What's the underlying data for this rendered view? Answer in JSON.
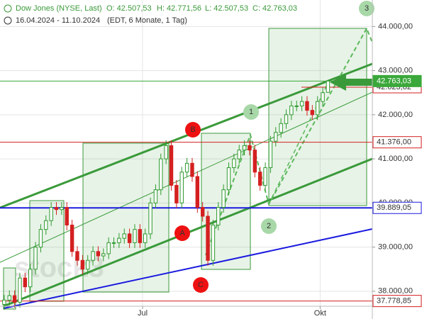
{
  "chart_data": {
    "type": "candlestick",
    "title": "Dow Jones (NYSE, Last)",
    "header_values": [
      "O: 42.507,53",
      "H: 42.771,56",
      "L: 42.507,53",
      "C: 42.763,03"
    ],
    "subtitle": "16.04.2024 - 11.10.2024",
    "subtitle_note": "(EDT, 6 Monate, 1 Tag)",
    "watermark": "stock3",
    "x": [
      0,
      2,
      4,
      6,
      8,
      10,
      12,
      14,
      16,
      18,
      20,
      22,
      24,
      26,
      28,
      30,
      32,
      34,
      36,
      38,
      40,
      42,
      44,
      46,
      48,
      50,
      52,
      54,
      56,
      58,
      60,
      62,
      64,
      66,
      68,
      70,
      72,
      74,
      76,
      78,
      80,
      82,
      84,
      86,
      88,
      90,
      92,
      94,
      96,
      98,
      100,
      102,
      104,
      106,
      108,
      110,
      112,
      114,
      116,
      118,
      120,
      122,
      124
    ],
    "open": [
      37700,
      37800,
      37900,
      37750,
      38300,
      38100,
      38500,
      39000,
      39400,
      39600,
      39900,
      39850,
      39900,
      39500,
      38900,
      38700,
      38500,
      38700,
      38900,
      38800,
      38850,
      39100,
      39100,
      39200,
      39300,
      39100,
      39400,
      39100,
      39300,
      40000,
      40300,
      41000,
      41300,
      40400,
      40000,
      40700,
      40900,
      40600,
      39900,
      39700,
      38700,
      39500,
      39900,
      40300,
      40800,
      41000,
      41200,
      41300,
      41200,
      40700,
      40400,
      40800,
      41400,
      41600,
      41800,
      42000,
      42200,
      42200,
      42300,
      42100,
      42000,
      42300,
      42507.53
    ],
    "high": [
      37920,
      38020,
      38020,
      38420,
      38420,
      38620,
      39120,
      39520,
      39720,
      40020,
      40020,
      40020,
      40020,
      39620,
      39020,
      38820,
      38820,
      39020,
      39020,
      38970,
      39220,
      39220,
      39320,
      39420,
      39420,
      39520,
      39520,
      39420,
      40120,
      40420,
      41120,
      41420,
      41420,
      40520,
      40820,
      41020,
      41020,
      40720,
      40020,
      39820,
      39620,
      40020,
      40420,
      40920,
      41120,
      41320,
      41420,
      41420,
      41320,
      40820,
      40920,
      41520,
      41720,
      41920,
      42120,
      42320,
      42320,
      42420,
      42420,
      42220,
      42420,
      42620,
      42771.56
    ],
    "low": [
      37580,
      37680,
      37630,
      37630,
      37980,
      37980,
      38380,
      38880,
      39280,
      39480,
      39730,
      39730,
      39380,
      38780,
      38580,
      38380,
      38380,
      38580,
      38680,
      38680,
      38730,
      38980,
      38980,
      39080,
      38980,
      38980,
      38980,
      38980,
      39180,
      39880,
      40180,
      40880,
      40280,
      39880,
      39880,
      40580,
      40480,
      39780,
      39580,
      38580,
      38580,
      39380,
      39780,
      40180,
      40680,
      40880,
      41080,
      41080,
      40580,
      40280,
      40280,
      40680,
      41280,
      41480,
      41680,
      41880,
      42080,
      42080,
      41980,
      41880,
      41880,
      42180,
      42507.53
    ],
    "close": [
      37800,
      37900,
      37750,
      38300,
      38100,
      38500,
      39000,
      39400,
      39600,
      39900,
      39850,
      39900,
      39500,
      38900,
      38700,
      38500,
      38700,
      38900,
      38800,
      38850,
      39100,
      39100,
      39200,
      39300,
      39100,
      39400,
      39100,
      39300,
      40000,
      40300,
      41000,
      41300,
      40400,
      40000,
      40700,
      40900,
      40600,
      39900,
      39700,
      38700,
      39500,
      39900,
      40300,
      40800,
      41000,
      41200,
      41300,
      41200,
      40700,
      40400,
      40800,
      41400,
      41600,
      41800,
      42000,
      42200,
      42200,
      42300,
      42100,
      42000,
      42300,
      42500,
      42763.03
    ],
    "up_color": "#2f9a2f",
    "down_color": "#d42020",
    "xlim": [
      -1.6,
      141
    ],
    "xticks": [
      {
        "value": 53,
        "label": "Jul"
      },
      {
        "value": 121,
        "label": "Okt"
      }
    ],
    "ylim": [
      37660,
      44600
    ],
    "yticks": [
      {
        "value": 38000,
        "label": "38.000,00"
      },
      {
        "value": 39000,
        "label": "39.000,00"
      },
      {
        "value": 40000,
        "label": "40.000,00"
      },
      {
        "value": 41000,
        "label": "41.000,00"
      },
      {
        "value": 42000,
        "label": "42.000,00"
      },
      {
        "value": 43000,
        "label": "43.000,00"
      },
      {
        "value": 44000,
        "label": "44.000,00"
      }
    ],
    "grid": true,
    "levels": [
      {
        "value": 42623.82,
        "label": "42.623,82",
        "color": "#d42020"
      },
      {
        "value": 41376,
        "label": "41.376,00",
        "color": "#d42020"
      },
      {
        "value": 39889.05,
        "label": "39.889,05",
        "color": "#1a1adf"
      },
      {
        "value": 37778.85,
        "label": "37.778,85",
        "color": "#d42020"
      },
      {
        "value": 42763.03,
        "label": "42.763,03",
        "color": "#3aa83a"
      }
    ],
    "annotations": [
      "1",
      "2",
      "3",
      "A",
      "B",
      "C"
    ]
  }
}
